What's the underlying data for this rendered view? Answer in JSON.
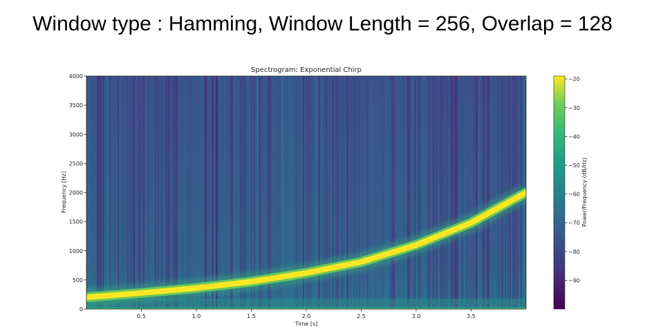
{
  "slide": {
    "title": "Window type : Hamming, Window Length = 256, Overlap = 128"
  },
  "chart_data": {
    "type": "heatmap",
    "title": "Spectrogram: Exponential Chirp",
    "xlabel": "Time [s]",
    "ylabel": "Frequency [Hz]",
    "xlim": [
      0,
      4.0
    ],
    "ylim": [
      0,
      4000
    ],
    "x_ticks": [
      0.5,
      1.0,
      1.5,
      2.0,
      2.5,
      3.0,
      3.5
    ],
    "x_tick_labels": [
      "0.5",
      "1.0",
      "1.5",
      "2.0",
      "2.5",
      "3.0",
      "3.5"
    ],
    "y_ticks": [
      0,
      500,
      1000,
      1500,
      2000,
      2500,
      3000,
      3500,
      4000
    ],
    "y_tick_labels": [
      "0",
      "500",
      "1000",
      "1500",
      "2000",
      "2500",
      "3000",
      "3500",
      "4000"
    ],
    "colormap": "viridis",
    "colorbar": {
      "label": "Power/Frequency (dB/Hz)",
      "range": [
        -100,
        -19
      ],
      "ticks": [
        -20,
        -30,
        -40,
        -50,
        -60,
        -70,
        -80,
        -90
      ],
      "tick_labels": [
        "−20",
        "−30",
        "−40",
        "−50",
        "−60",
        "−70",
        "−80",
        "−90"
      ]
    },
    "chirp_ridge": {
      "name": "",
      "time_s": [
        0.0,
        0.5,
        1.0,
        1.5,
        2.0,
        2.5,
        3.0,
        3.5,
        4.0
      ],
      "frequency_hz": [
        200,
        275,
        360,
        470,
        620,
        810,
        1100,
        1480,
        2000
      ],
      "power_db": -20
    },
    "background_power_db": -80,
    "grid": false,
    "legend": "none"
  }
}
